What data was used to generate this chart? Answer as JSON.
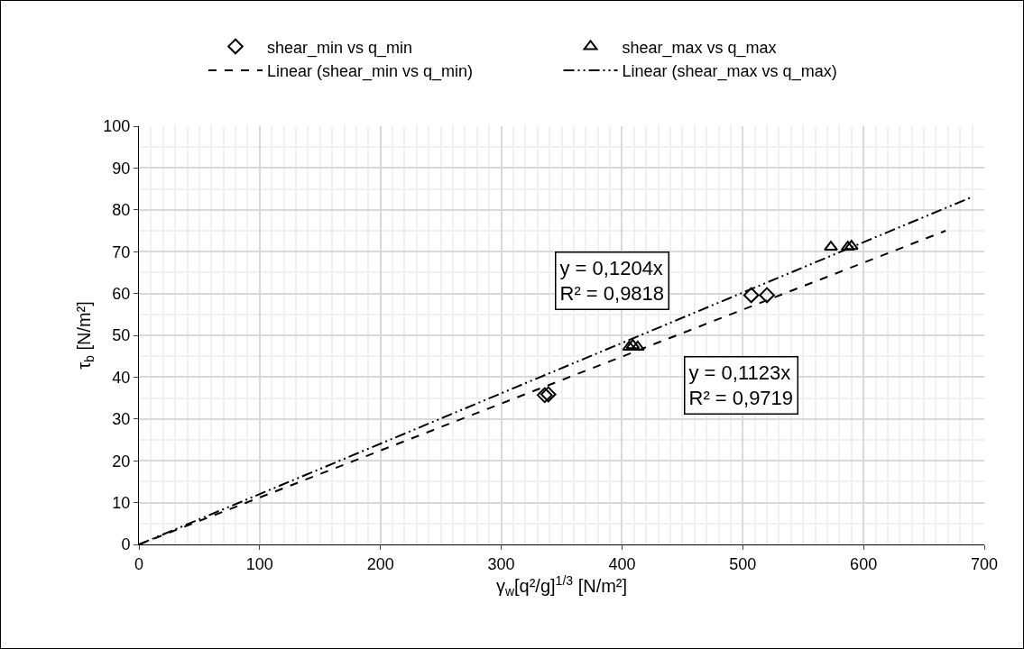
{
  "chart_data": {
    "type": "scatter",
    "xlabel": "γ$_{w}$[q²/g]$^{1/3}$ [N/m²]",
    "ylabel": "τ$_{b}$ [N/m²]",
    "xlim": [
      0,
      700
    ],
    "xticks": [
      0,
      100,
      200,
      300,
      400,
      500,
      600,
      700
    ],
    "ylim": [
      0,
      100
    ],
    "yticks": [
      0,
      10,
      20,
      30,
      40,
      50,
      60,
      70,
      80,
      90,
      100
    ],
    "grid": true,
    "legend": "top",
    "series": [
      {
        "name": "shear_min vs q_min",
        "marker": "diamond",
        "color": "#000000",
        "x": [
          336,
          339,
          507,
          520
        ],
        "values": [
          35.7,
          35.9,
          59.6,
          59.6
        ]
      },
      {
        "name": "shear_max vs q_max",
        "marker": "triangle",
        "color": "#000000",
        "x": [
          406,
          409,
          413,
          573,
          587,
          590
        ],
        "values": [
          47.2,
          47.6,
          47.2,
          71.1,
          71.1,
          71.3
        ]
      },
      {
        "name": "Linear (shear_min vs q_min)",
        "type": "line",
        "line_style": "dashed",
        "color": "#000000",
        "x": [
          0,
          668
        ],
        "values": [
          0,
          75.0
        ]
      },
      {
        "name": "Linear (shear_max vs q_max)",
        "type": "line",
        "line_style": "dashdot",
        "color": "#000000",
        "x": [
          0,
          690
        ],
        "values": [
          0,
          83.1
        ]
      }
    ],
    "annotations": [
      "y = 0,1204x\nR² = 0,9818",
      "y = 0,1123x\nR² = 0,9719"
    ]
  }
}
